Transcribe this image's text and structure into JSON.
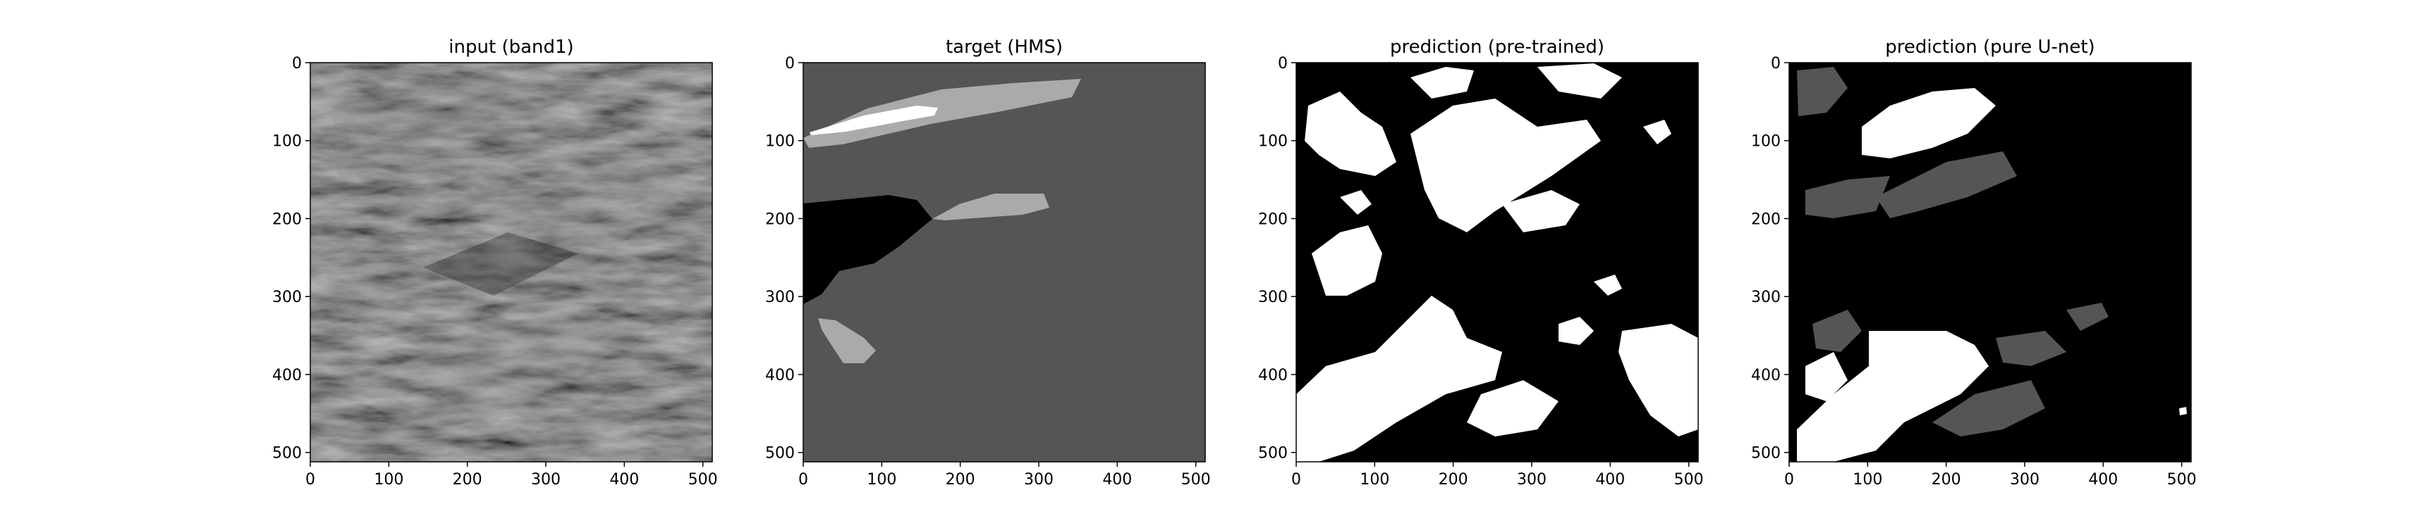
{
  "panels": [
    {
      "title": "input (band1)",
      "x_ticks": [
        "0",
        "100",
        "200",
        "300",
        "400",
        "500"
      ],
      "y_ticks": [
        "0",
        "100",
        "200",
        "300",
        "400",
        "500"
      ]
    },
    {
      "title": "target (HMS)",
      "x_ticks": [
        "0",
        "100",
        "200",
        "300",
        "400",
        "500"
      ],
      "y_ticks": [
        "0",
        "100",
        "200",
        "300",
        "400",
        "500"
      ]
    },
    {
      "title": "prediction (pre-trained)",
      "x_ticks": [
        "0",
        "100",
        "200",
        "300",
        "400",
        "500"
      ],
      "y_ticks": [
        "0",
        "100",
        "200",
        "300",
        "400",
        "500"
      ]
    },
    {
      "title": "prediction (pure U-net)",
      "x_ticks": [
        "0",
        "100",
        "200",
        "300",
        "400",
        "500"
      ],
      "y_ticks": [
        "0",
        "100",
        "200",
        "300",
        "400",
        "500"
      ]
    }
  ],
  "colors": {
    "background": "#ffffff",
    "mask_dark": "#000000",
    "mask_gray": "#555555",
    "mask_light": "#aaaaaa",
    "mask_white": "#ffffff"
  }
}
